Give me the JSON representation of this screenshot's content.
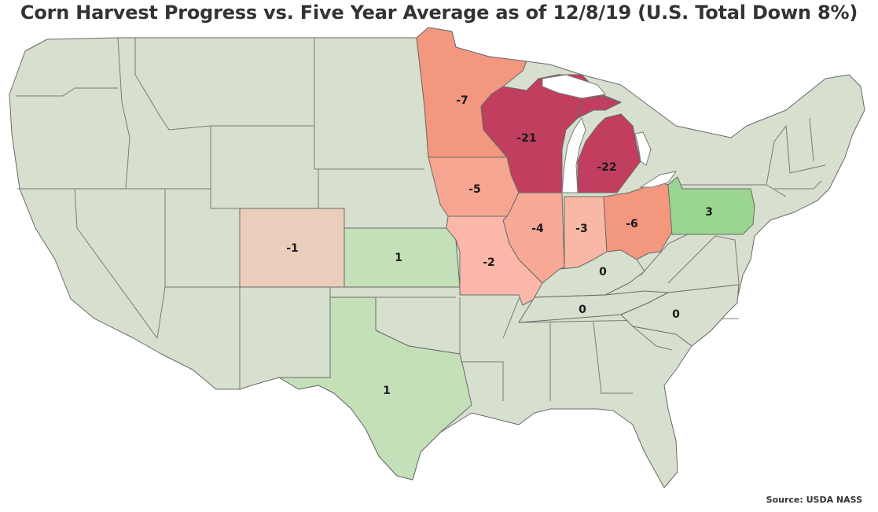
{
  "title": "Corn Harvest Progress vs. Five Year Average as of 12/8/19 (U.S. Total Down 8%)",
  "source": "Source: USDA NASS",
  "colors": {
    "background": "#ffffff",
    "no_data": "#d7dfce",
    "lake": "#ffffff",
    "scale": {
      "-22": "#c13e5e",
      "-21": "#c13e5e",
      "-7": "#f4977f",
      "-6": "#f4977f",
      "-5": "#f6a690",
      "-4": "#f7a996",
      "-3": "#f9b8a6",
      "-2": "#fbb8aa",
      "-1": "#ebcdbc",
      "0": "#d7dfce",
      "1": "#c4e0b8",
      "3": "#9bd691"
    }
  },
  "states": [
    {
      "id": "MN",
      "value": -7
    },
    {
      "id": "WI",
      "value": -21
    },
    {
      "id": "MI",
      "value": -22
    },
    {
      "id": "IA",
      "value": -5
    },
    {
      "id": "IL",
      "value": -4
    },
    {
      "id": "IN",
      "value": -3
    },
    {
      "id": "OH",
      "value": -6
    },
    {
      "id": "PA",
      "value": 3
    },
    {
      "id": "CO",
      "value": -1
    },
    {
      "id": "KS",
      "value": 1
    },
    {
      "id": "MO",
      "value": -2
    },
    {
      "id": "KY",
      "value": 0
    },
    {
      "id": "TN",
      "value": 0
    },
    {
      "id": "NC",
      "value": 0
    },
    {
      "id": "TX",
      "value": 1
    }
  ]
}
